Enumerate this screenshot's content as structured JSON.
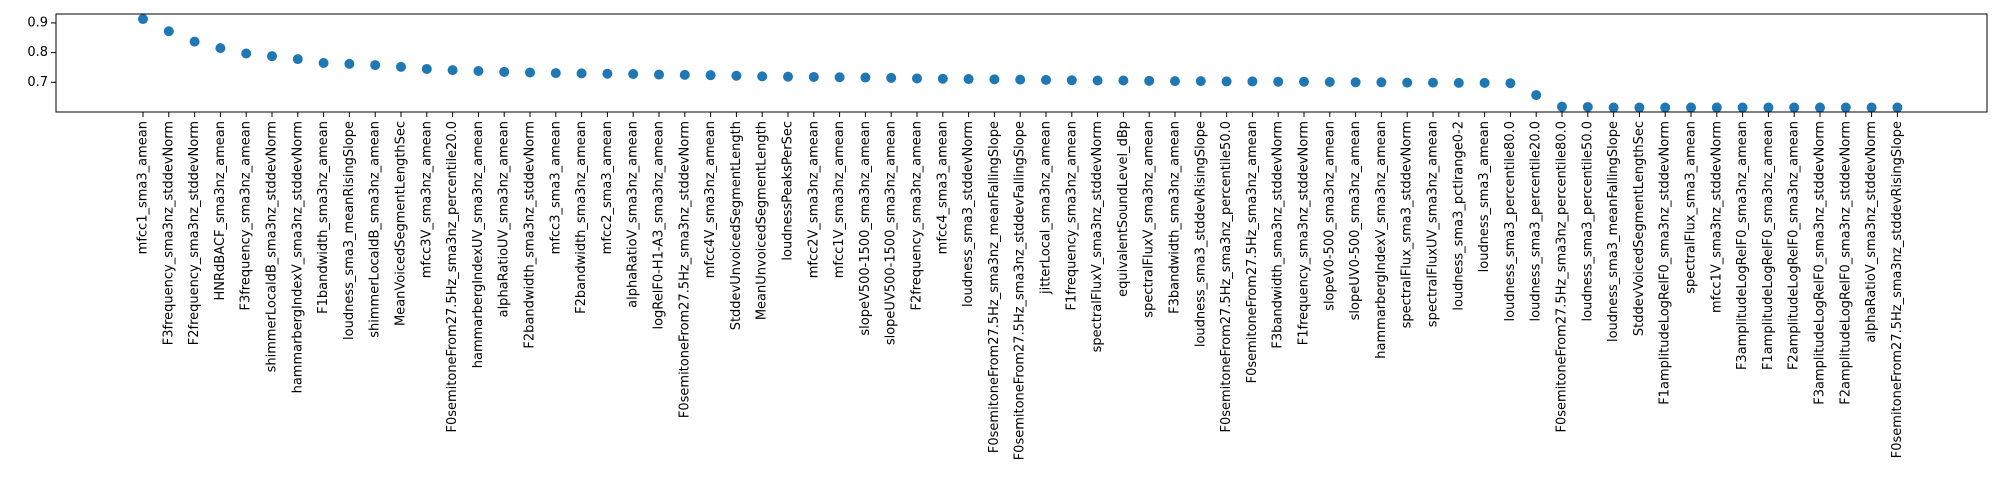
{
  "chart_data": {
    "type": "scatter",
    "title": "",
    "xlabel": "",
    "ylabel": "",
    "ylim": [
      0.6,
      0.93
    ],
    "yticks": [
      0.7,
      0.8,
      0.9
    ],
    "ytick_labels": [
      "0.7",
      "0.8",
      "0.9"
    ],
    "grid": false,
    "marker_color": "#1f77b4",
    "categories": [
      "mfcc1_sma3_amean",
      "F3frequency_sma3nz_stddevNorm",
      "F2frequency_sma3nz_stddevNorm",
      "HNRdBACF_sma3nz_amean",
      "F3frequency_sma3nz_amean",
      "shimmerLocaldB_sma3nz_stddevNorm",
      "hammarbergIndexV_sma3nz_stddevNorm",
      "F1bandwidth_sma3nz_amean",
      "loudness_sma3_meanRisingSlope",
      "shimmerLocaldB_sma3nz_amean",
      "MeanVoicedSegmentLengthSec",
      "mfcc3V_sma3nz_amean",
      "F0semitoneFrom27.5Hz_sma3nz_percentile20.0",
      "hammarbergIndexUV_sma3nz_amean",
      "alphaRatioUV_sma3nz_amean",
      "F2bandwidth_sma3nz_stddevNorm",
      "mfcc3_sma3_amean",
      "F2bandwidth_sma3nz_amean",
      "mfcc2_sma3_amean",
      "alphaRatioV_sma3nz_amean",
      "logRelF0-H1-A3_sma3nz_amean",
      "F0semitoneFrom27.5Hz_sma3nz_stddevNorm",
      "mfcc4V_sma3nz_amean",
      "StddevUnvoicedSegmentLength",
      "MeanUnvoicedSegmentLength",
      "loudnessPeaksPerSec",
      "mfcc2V_sma3nz_amean",
      "mfcc1V_sma3nz_amean",
      "slopeV500-1500_sma3nz_amean",
      "slopeUV500-1500_sma3nz_amean",
      "F2frequency_sma3nz_amean",
      "mfcc4_sma3_amean",
      "loudness_sma3_stddevNorm",
      "F0semitoneFrom27.5Hz_sma3nz_meanFallingSlope",
      "F0semitoneFrom27.5Hz_sma3nz_stddevFallingSlope",
      "jitterLocal_sma3nz_amean",
      "F1frequency_sma3nz_amean",
      "spectralFluxV_sma3nz_stddevNorm",
      "equivalentSoundLevel_dBp",
      "spectralFluxV_sma3nz_amean",
      "F3bandwidth_sma3nz_amean",
      "loudness_sma3_stddevRisingSlope",
      "F0semitoneFrom27.5Hz_sma3nz_percentile50.0",
      "F0semitoneFrom27.5Hz_sma3nz_amean",
      "F3bandwidth_sma3nz_stddevNorm",
      "F1frequency_sma3nz_stddevNorm",
      "slopeV0-500_sma3nz_amean",
      "slopeUV0-500_sma3nz_amean",
      "hammarbergIndexV_sma3nz_amean",
      "spectralFlux_sma3_stddevNorm",
      "spectralFluxUV_sma3nz_amean",
      "loudness_sma3_pctlrange0-2",
      "loudness_sma3_amean",
      "loudness_sma3_percentile80.0",
      "loudness_sma3_percentile20.0",
      "F0semitoneFrom27.5Hz_sma3nz_percentile80.0",
      "loudness_sma3_percentile50.0",
      "loudness_sma3_meanFallingSlope",
      "StddevVoicedSegmentLengthSec",
      "F1amplitudeLogRelF0_sma3nz_stddevNorm",
      "spectralFlux_sma3_amean",
      "mfcc1V_sma3nz_stddevNorm",
      "F3amplitudeLogRelF0_sma3nz_amean",
      "F1amplitudeLogRelF0_sma3nz_amean",
      "F2amplitudeLogRelF0_sma3nz_amean",
      "F3amplitudeLogRelF0_sma3nz_stddevNorm",
      "F2amplitudeLogRelF0_sma3nz_stddevNorm",
      "alphaRatioV_sma3nz_stddevNorm",
      "F0semitoneFrom27.5Hz_sma3nz_stddevRisingSlope"
    ],
    "values": [
      0.913,
      0.872,
      0.837,
      0.815,
      0.797,
      0.788,
      0.778,
      0.765,
      0.762,
      0.758,
      0.752,
      0.745,
      0.741,
      0.738,
      0.735,
      0.733,
      0.731,
      0.73,
      0.729,
      0.728,
      0.726,
      0.725,
      0.724,
      0.722,
      0.72,
      0.719,
      0.718,
      0.717,
      0.716,
      0.715,
      0.713,
      0.712,
      0.711,
      0.71,
      0.709,
      0.708,
      0.707,
      0.706,
      0.706,
      0.705,
      0.704,
      0.704,
      0.703,
      0.703,
      0.702,
      0.702,
      0.701,
      0.7,
      0.7,
      0.699,
      0.699,
      0.698,
      0.698,
      0.697,
      0.657,
      0.618,
      0.617,
      0.615,
      0.615,
      0.615,
      0.615,
      0.615,
      0.615,
      0.615,
      0.615,
      0.615,
      0.615,
      0.615,
      0.615
    ]
  }
}
